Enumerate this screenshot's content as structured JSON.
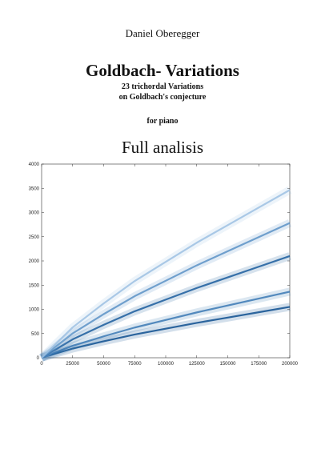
{
  "header": {
    "author": "Daniel Oberegger",
    "title": "Goldbach- Variations",
    "subtitle_1": "23 trichordal Variations",
    "subtitle_2": "on Goldbach's conjecture",
    "instrument": "for piano",
    "section": "Full analisis"
  },
  "chart_data": {
    "type": "line",
    "x": [
      0,
      25000,
      50000,
      75000,
      100000,
      125000,
      150000,
      175000,
      200000
    ],
    "series": [
      {
        "color": "#0d4f8f",
        "values": [
          0,
          190,
          340,
          480,
          600,
          720,
          830,
          940,
          1050
        ]
      },
      {
        "color": "#3a78b4",
        "values": [
          0,
          247,
          442,
          624,
          780,
          936,
          1079,
          1222,
          1365
        ]
      },
      {
        "color": "#1a5c9c",
        "values": [
          0,
          380,
          680,
          960,
          1200,
          1440,
          1660,
          1880,
          2100
        ]
      },
      {
        "color": "#5a92c6",
        "values": [
          0,
          504,
          901,
          1272,
          1590,
          1908,
          2200,
          2491,
          2783
        ]
      },
      {
        "color": "#9cc0e2",
        "values": [
          0,
          627,
          1122,
          1584,
          1980,
          2376,
          2739,
          3102,
          3465
        ]
      }
    ],
    "xlim": [
      0,
      200000
    ],
    "ylim": [
      0,
      4000
    ],
    "xticks": [
      0,
      25000,
      50000,
      75000,
      100000,
      125000,
      150000,
      175000,
      200000
    ],
    "yticks": [
      0,
      500,
      1000,
      1500,
      2000,
      2500,
      3000,
      3500,
      4000
    ]
  }
}
